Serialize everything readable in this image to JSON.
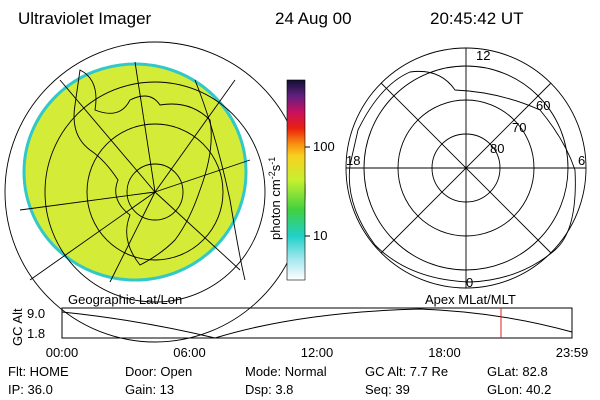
{
  "header": {
    "title": "Ultraviolet Imager",
    "date": "24 Aug 00",
    "time": "20:45:42 UT"
  },
  "colorbar": {
    "label": {
      "text": "photon cm",
      "exp1": "-2",
      "unit2": "s",
      "exp2": "-1"
    },
    "ticks": [
      "100",
      "10"
    ]
  },
  "left_map": {
    "caption": "Geographic Lat/Lon"
  },
  "right_map": {
    "caption": "Apex MLat/MLT",
    "mlt_labels": [
      "12",
      "18",
      "6",
      "0"
    ],
    "lat_labels": [
      "60",
      "70",
      "80"
    ]
  },
  "timeline": {
    "axis_label": "GC Alt",
    "y_labels": [
      "9.0",
      "1.8"
    ],
    "x_labels": [
      "00:00",
      "06:00",
      "12:00",
      "18:00",
      "23:59"
    ]
  },
  "info": {
    "rows": [
      [
        "Flt: HOME",
        "Door: Open",
        "Mode: Normal",
        "GC Alt: 7.7 Re",
        "GLat: 82.8"
      ],
      [
        "IP: 36.0",
        "Gain: 13",
        "Dsp:  3.8",
        "Seq: 39",
        "GLon: 40.2"
      ]
    ]
  }
}
